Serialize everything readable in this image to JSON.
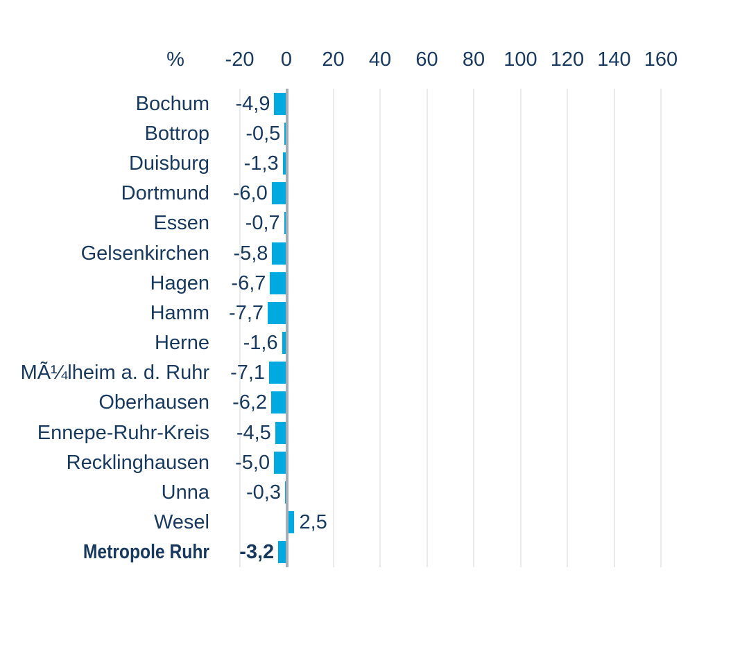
{
  "chart_data": {
    "type": "bar",
    "orientation": "horizontal",
    "title": "",
    "unit_label": "%",
    "categories": [
      "Bochum",
      "Bottrop",
      "Duisburg",
      "Dortmund",
      "Essen",
      "Gelsenkirchen",
      "Hagen",
      "Hamm",
      "Herne",
      "MÃ¼lheim a. d. Ruhr",
      "Oberhausen",
      "Ennepe-Ruhr-Kreis",
      "Recklinghausen",
      "Unna",
      "Wesel",
      "Metropole Ruhr"
    ],
    "values": [
      -4.9,
      -0.5,
      -1.3,
      -6.0,
      -0.7,
      -5.8,
      -6.7,
      -7.7,
      -1.6,
      -7.1,
      -6.2,
      -4.5,
      -5.0,
      -0.3,
      2.5,
      -3.2
    ],
    "value_labels": [
      "-4,9",
      "-0,5",
      "-1,3",
      "-6,0",
      "-0,7",
      "-5,8",
      "-6,7",
      "-7,7",
      "-1,6",
      "-7,1",
      "-6,2",
      "-4,5",
      "-5,0",
      "-0,3",
      "2,5",
      "-3,2"
    ],
    "bold_categories": [
      "Metropole Ruhr"
    ],
    "x_ticks": [
      -20,
      0,
      20,
      40,
      60,
      80,
      100,
      120,
      140,
      160
    ],
    "x_tick_labels": [
      "-20",
      "0",
      "20",
      "40",
      "60",
      "80",
      "100",
      "120",
      "140",
      "160"
    ],
    "xlim": [
      -20,
      160
    ],
    "grid": true,
    "legend": "none",
    "colors": {
      "bar": "#00a9e0",
      "text": "#17395f",
      "gridline": "#e8eaec",
      "zero_axis": "#a4aeb6",
      "background": "#ffffff"
    }
  }
}
